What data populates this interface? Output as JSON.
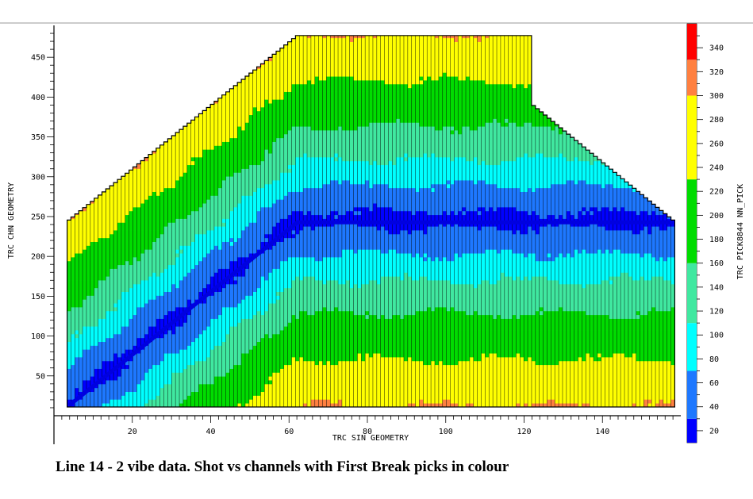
{
  "caption": "Line 14 - 2 vibe data.  Shot vs channels with First Break picks in colour",
  "chart_data": {
    "type": "heatmap",
    "title": "",
    "xlabel": "TRC SIN GEOMETRY",
    "ylabel": "TRC CHN GEOMETRY",
    "colorbar_label": "TRC PICK8844 NN_PICK",
    "xlim": [
      0,
      160
    ],
    "ylim": [
      0,
      490
    ],
    "x_ticks": [
      20,
      40,
      60,
      80,
      100,
      120,
      140
    ],
    "y_ticks": [
      50,
      100,
      150,
      200,
      250,
      300,
      350,
      400,
      450
    ],
    "shots": {
      "first": 1,
      "last": 157
    },
    "channels_max_by_shot": [
      {
        "shot": 1,
        "channels": 243
      },
      {
        "shot": 60,
        "channels": 483
      },
      {
        "shot": 120,
        "channels": 483
      },
      {
        "shot": 121,
        "channels": 392
      },
      {
        "shot": 157,
        "channels": 243
      }
    ],
    "source_line": [
      {
        "shot": 1,
        "channel": 2
      },
      {
        "shot": 60,
        "channel": 240
      },
      {
        "shot": 157,
        "channel": 240
      }
    ],
    "colorbar": {
      "min": 10,
      "max": 360,
      "ticks": [
        20,
        40,
        60,
        80,
        100,
        120,
        140,
        160,
        180,
        200,
        220,
        240,
        260,
        280,
        300,
        320,
        340
      ],
      "levels": [
        {
          "from": 10,
          "to": 30,
          "color": "#0000ff"
        },
        {
          "from": 30,
          "to": 70,
          "color": "#1e78ff"
        },
        {
          "from": 70,
          "to": 110,
          "color": "#00ffff"
        },
        {
          "from": 110,
          "to": 160,
          "color": "#40e8a0"
        },
        {
          "from": 160,
          "to": 230,
          "color": "#00dc00"
        },
        {
          "from": 230,
          "to": 300,
          "color": "#ffff00"
        },
        {
          "from": 300,
          "to": 330,
          "color": "#ff8040"
        },
        {
          "from": 330,
          "to": 360,
          "color": "#ff0000"
        }
      ]
    }
  }
}
